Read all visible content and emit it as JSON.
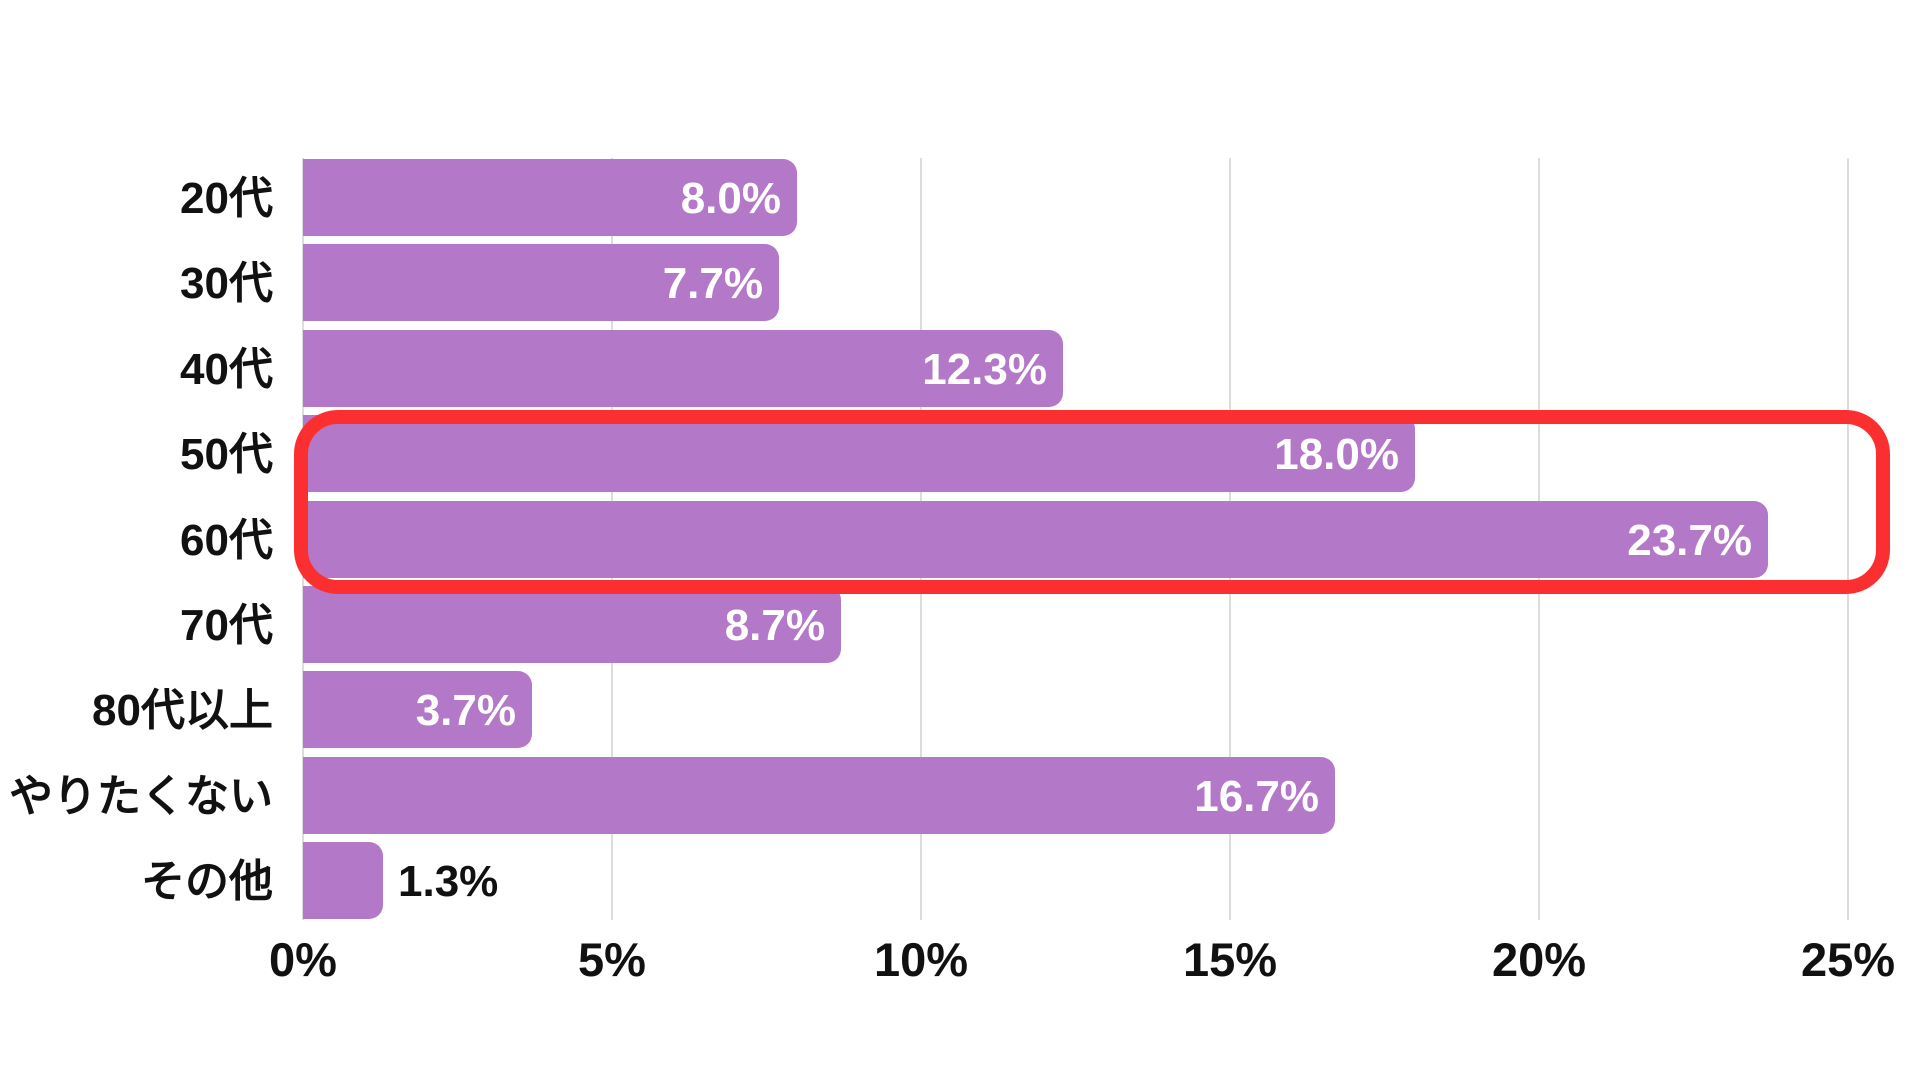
{
  "chart_data": {
    "type": "bar",
    "orientation": "horizontal",
    "title": "",
    "categories": [
      "20代",
      "30代",
      "40代",
      "50代",
      "60代",
      "70代",
      "80代以上",
      "やりたくない",
      "その他"
    ],
    "values": [
      8.0,
      7.7,
      12.3,
      18.0,
      23.7,
      8.7,
      3.7,
      16.7,
      1.3
    ],
    "value_labels": [
      "8.0%",
      "7.7%",
      "12.3%",
      "18.0%",
      "23.7%",
      "8.7%",
      "3.7%",
      "16.7%",
      "1.3%"
    ],
    "x_ticks": [
      "0%",
      "5%",
      "10%",
      "15%",
      "20%",
      "25%"
    ],
    "x_tick_values": [
      0,
      5,
      10,
      15,
      20,
      25
    ],
    "xlim": [
      0,
      25
    ],
    "xlabel": "",
    "ylabel": "",
    "grid": true,
    "legend_position": "none",
    "bar_color": "#b378c7",
    "gridline_color": "#dcdcdc",
    "axis_text_color": "#111111",
    "category_text_color": "#111111",
    "value_label_color_inside": "#ffffff",
    "value_label_color_outside": "#111111",
    "highlight": {
      "shape": "rounded-rect-outline",
      "rows": [
        "50代",
        "60代"
      ],
      "color": "#fb2f2f"
    }
  }
}
